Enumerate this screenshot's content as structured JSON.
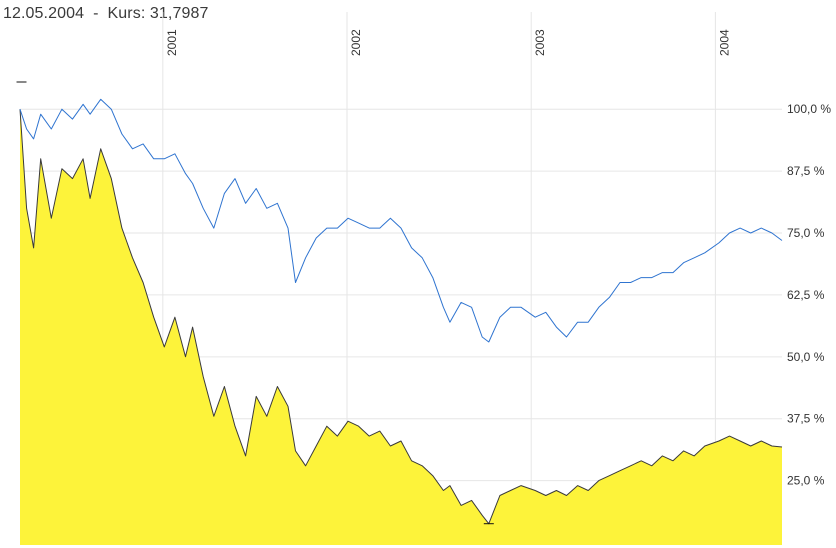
{
  "header": {
    "date": "12.05.2004",
    "separator": "-",
    "price_label": "Kurs: 31,7987"
  },
  "colors": {
    "price_fill": "#fdf33a",
    "price_line": "#3a3a3a",
    "benchmark_line": "#2f74d0",
    "grid": "#e6e6e6"
  },
  "chart_data": {
    "type": "area",
    "title": "12.05.2004 - Kurs: 31,7987",
    "xlim": [
      "2000-03-24",
      "2004-05-12"
    ],
    "ylim": [
      12,
      116
    ],
    "y_scale": "linear",
    "y_axis_position": "right",
    "grid": true,
    "x_tick_labels": [
      {
        "label": "2001",
        "x": "2001-01-01"
      },
      {
        "label": "2002",
        "x": "2002-01-01"
      },
      {
        "label": "2003",
        "x": "2003-01-01"
      },
      {
        "label": "2004",
        "x": "2004-01-01"
      }
    ],
    "y_tick_labels": [
      {
        "label": "100,0 %",
        "y": 100
      },
      {
        "label": "87,5 %",
        "y": 87.5
      },
      {
        "label": "75,0 %",
        "y": 75
      },
      {
        "label": "62,5 %",
        "y": 62.5
      },
      {
        "label": "50,0 %",
        "y": 50
      },
      {
        "label": "37,5 %",
        "y": 37.5
      },
      {
        "label": "25,0 %",
        "y": 25
      }
    ],
    "markers": [
      {
        "kind": "high",
        "x": "2000-03-27",
        "y": 105.5
      },
      {
        "kind": "low",
        "x": "2002-10-09",
        "y": 16.3
      }
    ],
    "series": [
      {
        "style": "area",
        "x": [
          "2000-03-24",
          "2000-04-06",
          "2000-04-20",
          "2000-05-04",
          "2000-05-25",
          "2000-06-15",
          "2000-07-06",
          "2000-07-27",
          "2000-08-10",
          "2000-08-31",
          "2000-09-21",
          "2000-10-12",
          "2000-11-02",
          "2000-11-23",
          "2000-12-14",
          "2001-01-04",
          "2001-01-25",
          "2001-02-15",
          "2001-03-01",
          "2001-03-22",
          "2001-04-12",
          "2001-05-03",
          "2001-05-24",
          "2001-06-14",
          "2001-07-05",
          "2001-07-26",
          "2001-08-16",
          "2001-09-06",
          "2001-09-21",
          "2001-10-11",
          "2001-11-01",
          "2001-11-22",
          "2001-12-13",
          "2002-01-03",
          "2002-01-24",
          "2002-02-14",
          "2002-03-07",
          "2002-03-28",
          "2002-04-18",
          "2002-05-09",
          "2002-05-30",
          "2002-06-20",
          "2002-07-11",
          "2002-07-24",
          "2002-08-15",
          "2002-09-05",
          "2002-09-26",
          "2002-10-09",
          "2002-10-31",
          "2002-11-21",
          "2002-12-12",
          "2003-01-09",
          "2003-01-30",
          "2003-02-20",
          "2003-03-12",
          "2003-04-03",
          "2003-04-24",
          "2003-05-15",
          "2003-06-05",
          "2003-06-26",
          "2003-07-17",
          "2003-08-07",
          "2003-08-28",
          "2003-09-18",
          "2003-10-09",
          "2003-10-30",
          "2003-11-20",
          "2003-12-11",
          "2004-01-08",
          "2004-01-29",
          "2004-02-19",
          "2004-03-11",
          "2004-04-01",
          "2004-04-22",
          "2004-05-12"
        ],
        "values": [
          100,
          80,
          72,
          90,
          78,
          88,
          86,
          90,
          82,
          92,
          86,
          76,
          70,
          65,
          58,
          52,
          58,
          50,
          56,
          46,
          38,
          44,
          36,
          30,
          42,
          38,
          44,
          40,
          31,
          28,
          32,
          36,
          34,
          37,
          36,
          34,
          35,
          32,
          33,
          29,
          28,
          26,
          23,
          24,
          20,
          21,
          18,
          16.3,
          22,
          23,
          24,
          23,
          22,
          23,
          22,
          24,
          23,
          25,
          26,
          27,
          28,
          29,
          28,
          30,
          29,
          31,
          30,
          32,
          33,
          34,
          33,
          32,
          33,
          32,
          31.8
        ]
      },
      {
        "style": "line",
        "x": [
          "2000-03-24",
          "2000-04-06",
          "2000-04-20",
          "2000-05-04",
          "2000-05-25",
          "2000-06-15",
          "2000-07-06",
          "2000-07-27",
          "2000-08-10",
          "2000-08-31",
          "2000-09-21",
          "2000-10-12",
          "2000-11-02",
          "2000-11-23",
          "2000-12-14",
          "2001-01-04",
          "2001-01-25",
          "2001-02-15",
          "2001-03-01",
          "2001-03-22",
          "2001-04-12",
          "2001-05-03",
          "2001-05-24",
          "2001-06-14",
          "2001-07-05",
          "2001-07-26",
          "2001-08-16",
          "2001-09-06",
          "2001-09-21",
          "2001-10-11",
          "2001-11-01",
          "2001-11-22",
          "2001-12-13",
          "2002-01-03",
          "2002-01-24",
          "2002-02-14",
          "2002-03-07",
          "2002-03-28",
          "2002-04-18",
          "2002-05-09",
          "2002-05-30",
          "2002-06-20",
          "2002-07-11",
          "2002-07-24",
          "2002-08-15",
          "2002-09-05",
          "2002-09-26",
          "2002-10-09",
          "2002-10-31",
          "2002-11-21",
          "2002-12-12",
          "2003-01-09",
          "2003-01-30",
          "2003-02-20",
          "2003-03-12",
          "2003-04-03",
          "2003-04-24",
          "2003-05-15",
          "2003-06-05",
          "2003-06-26",
          "2003-07-17",
          "2003-08-07",
          "2003-08-28",
          "2003-09-18",
          "2003-10-09",
          "2003-10-30",
          "2003-11-20",
          "2003-12-11",
          "2004-01-08",
          "2004-01-29",
          "2004-02-19",
          "2004-03-11",
          "2004-04-01",
          "2004-04-22",
          "2004-05-12"
        ],
        "values": [
          100,
          96,
          94,
          99,
          96,
          100,
          98,
          101,
          99,
          102,
          100,
          95,
          92,
          93,
          90,
          90,
          91,
          87,
          85,
          80,
          76,
          83,
          86,
          81,
          84,
          80,
          81,
          76,
          65,
          70,
          74,
          76,
          76,
          78,
          77,
          76,
          76,
          78,
          76,
          72,
          70,
          66,
          60,
          57,
          61,
          60,
          54,
          53,
          58,
          60,
          60,
          58,
          59,
          56,
          54,
          57,
          57,
          60,
          62,
          65,
          65,
          66,
          66,
          67,
          67,
          69,
          70,
          71,
          73,
          75,
          76,
          75,
          76,
          75,
          73.5
        ]
      }
    ]
  }
}
